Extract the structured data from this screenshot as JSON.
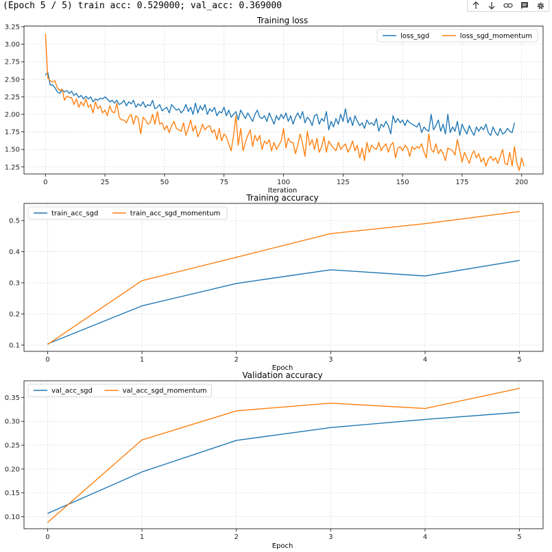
{
  "output": {
    "log_line": "(Epoch 5 / 5) train acc: 0.529000; val_acc: 0.369000"
  },
  "toolbar": {
    "icons": [
      "arrow-up-icon",
      "arrow-down-icon",
      "link-icon",
      "comment-icon",
      "gear-icon"
    ]
  },
  "colors": {
    "series_blue": "#1f77b4",
    "series_orange": "#ff7f0e",
    "grid": "#cccccc"
  },
  "chart_data": [
    {
      "type": "line",
      "title": "Training loss",
      "xlabel": "Iteration",
      "ylabel": "",
      "xlim": [
        -9,
        209
      ],
      "ylim": [
        1.15,
        3.26
      ],
      "xticks": [
        0,
        25,
        50,
        75,
        100,
        125,
        150,
        175,
        200
      ],
      "yticks": [
        1.25,
        1.5,
        1.75,
        2.0,
        2.25,
        2.5,
        2.75,
        3.0,
        3.25
      ],
      "ytick_labels": [
        "1.25",
        "1.50",
        "1.75",
        "2.00",
        "2.25",
        "2.50",
        "2.75",
        "3.00",
        "3.25"
      ],
      "grid": true,
      "legend_position": "top-right",
      "legend_layout": "row",
      "series": [
        {
          "name": "loss_sgd",
          "color": "#1f77b4",
          "values": [
            2.56,
            2.6,
            2.42,
            2.42,
            2.38,
            2.32,
            2.3,
            2.35,
            2.32,
            2.34,
            2.3,
            2.33,
            2.27,
            2.3,
            2.24,
            2.27,
            2.22,
            2.26,
            2.22,
            2.25,
            2.18,
            2.22,
            2.2,
            2.23,
            2.22,
            2.25,
            2.22,
            2.18,
            2.2,
            2.16,
            2.2,
            2.14,
            2.16,
            2.2,
            2.12,
            2.18,
            2.15,
            2.2,
            2.1,
            2.15,
            2.12,
            2.18,
            2.1,
            2.14,
            2.12,
            2.2,
            2.08,
            2.1,
            2.14,
            2.05,
            2.08,
            2.1,
            2.02,
            2.14,
            2.1,
            2.06,
            2.08,
            2.02,
            2.06,
            2.14,
            2.04,
            2.1,
            2.0,
            2.16,
            2.02,
            2.12,
            2.06,
            2.14,
            2.0,
            2.08,
            2.04,
            2.1,
            1.98,
            2.04,
            2.02,
            2.1,
            1.98,
            2.06,
            1.96,
            2.0,
            2.04,
            1.92,
            2.06,
            2.0,
            1.94,
            2.02,
            1.96,
            1.9,
            2.0,
            2.06,
            1.96,
            1.94,
            1.98,
            1.9,
            2.02,
            1.94,
            1.86,
            1.98,
            1.92,
            2.0,
            1.94,
            2.02,
            1.9,
            1.98,
            1.86,
            1.96,
            2.02,
            1.94,
            2.04,
            1.88,
            1.96,
            1.92,
            1.84,
            1.98,
            2.0,
            1.86,
            1.94,
            1.9,
            2.04,
            1.78,
            1.9,
            1.82,
            1.94,
            1.86,
            2.0,
            1.9,
            2.08,
            1.88,
            1.96,
            1.84,
            1.98,
            1.9,
            1.84,
            1.88,
            1.8,
            1.92,
            1.86,
            1.88,
            1.84,
            1.94,
            1.76,
            1.86,
            1.82,
            1.9,
            1.84,
            1.72,
            1.98,
            1.88,
            1.94,
            1.88,
            1.92,
            1.84,
            1.92,
            1.88,
            1.86,
            1.84,
            1.82,
            1.88,
            1.74,
            1.82,
            1.78,
            1.76,
            2.0,
            1.78,
            1.84,
            1.92,
            1.76,
            1.86,
            1.72,
            2.0,
            1.74,
            1.82,
            1.76,
            1.9,
            1.7,
            1.86,
            1.78,
            1.72,
            1.84,
            1.76,
            1.7,
            1.82,
            1.76,
            1.82,
            1.78,
            1.86,
            1.74,
            1.7,
            1.82,
            1.74,
            1.7,
            1.8,
            1.72,
            1.74,
            1.8,
            1.76,
            1.74,
            1.88
          ]
        },
        {
          "name": "loss_sgd_momentum",
          "color": "#ff7f0e",
          "values": [
            3.15,
            2.52,
            2.48,
            2.46,
            2.48,
            2.38,
            2.34,
            2.36,
            2.2,
            2.26,
            2.24,
            2.24,
            2.14,
            2.22,
            2.1,
            2.18,
            2.12,
            2.22,
            2.1,
            2.14,
            2.02,
            2.18,
            2.08,
            2.12,
            2.02,
            2.06,
            1.98,
            2.12,
            2.04,
            2.02,
            2.16,
            1.96,
            1.92,
            1.92,
            1.88,
            1.96,
            2.0,
            1.86,
            1.98,
            1.94,
            1.72,
            1.96,
            1.92,
            1.86,
            1.88,
            2.0,
            1.86,
            2.04,
            1.86,
            1.88,
            1.78,
            1.84,
            1.74,
            1.84,
            1.9,
            1.8,
            1.78,
            1.76,
            1.88,
            1.7,
            1.8,
            1.92,
            1.76,
            1.84,
            1.68,
            1.76,
            1.86,
            1.78,
            1.82,
            1.84,
            1.74,
            1.78,
            1.64,
            1.8,
            1.62,
            1.72,
            1.68,
            1.58,
            1.48,
            1.7,
            1.98,
            1.56,
            1.8,
            1.48,
            1.6,
            1.7,
            1.78,
            1.54,
            1.7,
            1.62,
            1.7,
            1.5,
            1.62,
            1.58,
            1.64,
            1.48,
            1.6,
            1.5,
            1.56,
            1.62,
            1.8,
            1.52,
            1.66,
            1.6,
            1.6,
            1.44,
            1.56,
            1.72,
            1.58,
            1.4,
            1.76,
            1.56,
            1.64,
            1.5,
            1.66,
            1.46,
            1.54,
            1.68,
            1.46,
            1.62,
            1.56,
            1.52,
            1.48,
            1.6,
            1.5,
            1.54,
            1.58,
            1.46,
            1.52,
            1.62,
            1.48,
            1.56,
            1.38,
            1.52,
            1.34,
            1.6,
            1.46,
            1.56,
            1.52,
            1.5,
            1.6,
            1.48,
            1.54,
            1.58,
            1.46,
            1.56,
            1.6,
            1.38,
            1.52,
            1.54,
            1.48,
            1.56,
            1.52,
            1.4,
            1.54,
            1.5,
            1.54,
            1.52,
            1.58,
            1.46,
            1.38,
            1.72,
            1.5,
            1.46,
            1.58,
            1.44,
            1.5,
            1.44,
            1.34,
            1.52,
            1.5,
            1.48,
            1.42,
            1.64,
            1.48,
            1.32,
            1.46,
            1.38,
            1.3,
            1.42,
            1.48,
            1.38,
            1.44,
            1.32,
            1.38,
            1.26,
            1.36,
            1.4,
            1.34,
            1.38,
            1.3,
            1.4,
            1.5,
            1.3,
            1.28,
            1.46,
            1.26,
            1.54,
            1.3,
            1.2,
            1.38,
            1.26
          ]
        }
      ]
    },
    {
      "type": "line",
      "title": "Training accuracy",
      "xlabel": "Epoch",
      "ylabel": "",
      "xlim": [
        -0.25,
        5.25
      ],
      "ylim": [
        0.08,
        0.555
      ],
      "xticks": [
        0,
        1,
        2,
        3,
        4,
        5
      ],
      "yticks": [
        0.1,
        0.2,
        0.3,
        0.4,
        0.5
      ],
      "ytick_labels": [
        "0.1",
        "0.2",
        "0.3",
        "0.4",
        "0.5"
      ],
      "grid": true,
      "legend_position": "top-left",
      "legend_layout": "row",
      "x": [
        0,
        1,
        2,
        3,
        4,
        5
      ],
      "series": [
        {
          "name": "train_acc_sgd",
          "color": "#1f77b4",
          "values": [
            0.104,
            0.226,
            0.298,
            0.342,
            0.322,
            0.372
          ]
        },
        {
          "name": "train_acc_sgd_momentum",
          "color": "#ff7f0e",
          "values": [
            0.102,
            0.307,
            0.382,
            0.458,
            0.49,
            0.529
          ]
        }
      ]
    },
    {
      "type": "line",
      "title": "Validation accuracy",
      "xlabel": "Epoch",
      "ylabel": "",
      "xlim": [
        -0.25,
        5.25
      ],
      "ylim": [
        0.075,
        0.385
      ],
      "xticks": [
        0,
        1,
        2,
        3,
        4,
        5
      ],
      "yticks": [
        0.1,
        0.15,
        0.2,
        0.25,
        0.3,
        0.35
      ],
      "ytick_labels": [
        "0.10",
        "0.15",
        "0.20",
        "0.25",
        "0.30",
        "0.35"
      ],
      "grid": true,
      "legend_position": "top-left",
      "legend_layout": "row",
      "x": [
        0,
        1,
        2,
        3,
        4,
        5
      ],
      "series": [
        {
          "name": "val_acc_sgd",
          "color": "#1f77b4",
          "values": [
            0.107,
            0.194,
            0.26,
            0.287,
            0.304,
            0.319
          ]
        },
        {
          "name": "val_acc_sgd_momentum",
          "color": "#ff7f0e",
          "values": [
            0.088,
            0.261,
            0.322,
            0.338,
            0.327,
            0.369
          ]
        }
      ]
    }
  ]
}
